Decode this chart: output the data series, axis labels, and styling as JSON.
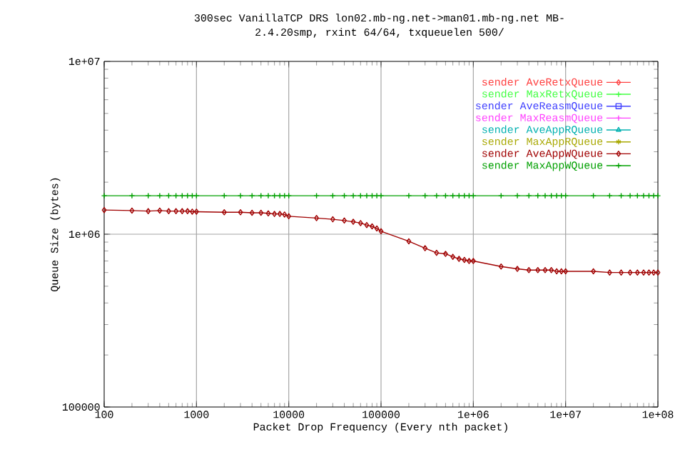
{
  "chart_data": {
    "type": "line",
    "title": "300sec VanillaTCP DRS lon02.mb-ng.net->man01.mb-ng.net MB-",
    "subtitle": "2.4.20smp, rxint 64/64, txqueuelen 500/",
    "xlabel": "Packet Drop Frequency (Every nth packet)",
    "ylabel": "Queue Size (bytes)",
    "x": [
      100,
      200,
      300,
      400,
      500,
      600,
      700,
      800,
      900,
      1000,
      2000,
      3000,
      4000,
      5000,
      6000,
      7000,
      8000,
      9000,
      10000,
      20000,
      30000,
      40000,
      50000,
      60000,
      70000,
      80000,
      90000,
      100000,
      200000,
      300000,
      400000,
      500000,
      600000,
      700000,
      800000,
      900000,
      1000000,
      2000000,
      3000000,
      4000000,
      5000000,
      6000000,
      7000000,
      8000000,
      9000000,
      10000000,
      20000000,
      30000000,
      40000000,
      50000000,
      60000000,
      70000000,
      80000000,
      90000000,
      100000000
    ],
    "xlim": [
      100,
      100000000
    ],
    "xticks": [
      100,
      1000,
      10000,
      100000,
      {
        "value": 1000000,
        "label": "1e+06"
      },
      {
        "value": 10000000,
        "label": "1e+07"
      },
      {
        "value": 100000000,
        "label": "1e+08"
      }
    ],
    "ylim": [
      100000,
      10000000
    ],
    "yticks": [
      100000,
      {
        "value": 1000000,
        "label": "1e+06"
      },
      {
        "value": 10000000,
        "label": "1e+07"
      }
    ],
    "log": "xy",
    "grid": true,
    "legend": "top right",
    "line_style": "solid",
    "series": [
      {
        "name": "sender AveRetxQueue",
        "color": "#ff4040",
        "marker": "diamond",
        "values": [
          null,
          null,
          null,
          null,
          null,
          null,
          null,
          null,
          null,
          null,
          null,
          null,
          null,
          null,
          null,
          null,
          null,
          null,
          null,
          null,
          null,
          null,
          null,
          null,
          null,
          null,
          null,
          null,
          null,
          null,
          null,
          null,
          null,
          null,
          null,
          null,
          null,
          null,
          null,
          null,
          null,
          null,
          null,
          null,
          null,
          null,
          null,
          null,
          null,
          null,
          null,
          null,
          null,
          null,
          null
        ]
      },
      {
        "name": "sender MaxRetxQueue",
        "color": "#40ff40",
        "marker": "cross",
        "values": [
          null,
          null,
          null,
          null,
          null,
          null,
          null,
          null,
          null,
          null,
          null,
          null,
          null,
          null,
          null,
          null,
          null,
          null,
          null,
          null,
          null,
          null,
          null,
          null,
          null,
          null,
          null,
          null,
          null,
          null,
          null,
          null,
          null,
          null,
          null,
          null,
          null,
          null,
          null,
          null,
          null,
          null,
          null,
          null,
          null,
          null,
          null,
          null,
          null,
          null,
          null,
          null,
          null,
          null,
          null
        ]
      },
      {
        "name": "sender AveReasmQueue",
        "color": "#4040ff",
        "marker": "square",
        "values": [
          null,
          null,
          null,
          null,
          null,
          null,
          null,
          null,
          null,
          null,
          null,
          null,
          null,
          null,
          null,
          null,
          null,
          null,
          null,
          null,
          null,
          null,
          null,
          null,
          null,
          null,
          null,
          null,
          null,
          null,
          null,
          null,
          null,
          null,
          null,
          null,
          null,
          null,
          null,
          null,
          null,
          null,
          null,
          null,
          null,
          null,
          null,
          null,
          null,
          null,
          null,
          null,
          null,
          null,
          null
        ]
      },
      {
        "name": "sender MaxReasmQueue",
        "color": "#ff40ff",
        "marker": "cross",
        "values": [
          null,
          null,
          null,
          null,
          null,
          null,
          null,
          null,
          null,
          null,
          null,
          null,
          null,
          null,
          null,
          null,
          null,
          null,
          null,
          null,
          null,
          null,
          null,
          null,
          null,
          null,
          null,
          null,
          null,
          null,
          null,
          null,
          null,
          null,
          null,
          null,
          null,
          null,
          null,
          null,
          null,
          null,
          null,
          null,
          null,
          null,
          null,
          null,
          null,
          null,
          null,
          null,
          null,
          null,
          null
        ]
      },
      {
        "name": "sender AveAppRQueue",
        "color": "#00b0b0",
        "marker": "triangle",
        "values": [
          null,
          null,
          null,
          null,
          null,
          null,
          null,
          null,
          null,
          null,
          null,
          null,
          null,
          null,
          null,
          null,
          null,
          null,
          null,
          null,
          null,
          null,
          null,
          null,
          null,
          null,
          null,
          null,
          null,
          null,
          null,
          null,
          null,
          null,
          null,
          null,
          null,
          null,
          null,
          null,
          null,
          null,
          null,
          null,
          null,
          null,
          null,
          null,
          null,
          null,
          null,
          null,
          null,
          null,
          null
        ]
      },
      {
        "name": "sender MaxAppRQueue",
        "color": "#a8a800",
        "marker": "star",
        "values": [
          null,
          null,
          null,
          null,
          null,
          null,
          null,
          null,
          null,
          null,
          null,
          null,
          null,
          null,
          null,
          null,
          null,
          null,
          null,
          null,
          null,
          null,
          null,
          null,
          null,
          null,
          null,
          null,
          null,
          null,
          null,
          null,
          null,
          null,
          null,
          null,
          null,
          null,
          null,
          null,
          null,
          null,
          null,
          null,
          null,
          null,
          null,
          null,
          null,
          null,
          null,
          null,
          null,
          null,
          null
        ]
      },
      {
        "name": "sender AveAppWQueue",
        "color": "#a00000",
        "marker": "diamond",
        "values": [
          1380000,
          1370000,
          1360000,
          1370000,
          1360000,
          1360000,
          1360000,
          1360000,
          1350000,
          1350000,
          1340000,
          1340000,
          1330000,
          1330000,
          1320000,
          1310000,
          1310000,
          1300000,
          1270000,
          1240000,
          1220000,
          1200000,
          1180000,
          1160000,
          1130000,
          1110000,
          1080000,
          1040000,
          910000,
          830000,
          780000,
          770000,
          740000,
          720000,
          710000,
          700000,
          700000,
          650000,
          630000,
          620000,
          620000,
          620000,
          620000,
          610000,
          610000,
          610000,
          610000,
          600000,
          600000,
          600000,
          600000,
          600000,
          600000,
          600000,
          600000
        ]
      },
      {
        "name": "sender MaxAppWQueue",
        "color": "#00a000",
        "marker": "cross",
        "values": [
          1670000,
          1670000,
          1670000,
          1670000,
          1670000,
          1670000,
          1670000,
          1670000,
          1670000,
          1670000,
          1670000,
          1670000,
          1670000,
          1670000,
          1670000,
          1670000,
          1670000,
          1670000,
          1670000,
          1670000,
          1670000,
          1670000,
          1670000,
          1670000,
          1670000,
          1670000,
          1670000,
          1670000,
          1670000,
          1670000,
          1670000,
          1670000,
          1670000,
          1670000,
          1670000,
          1670000,
          1670000,
          1670000,
          1670000,
          1670000,
          1670000,
          1670000,
          1670000,
          1670000,
          1670000,
          1670000,
          1670000,
          1670000,
          1670000,
          1670000,
          1670000,
          1670000,
          1670000,
          1670000,
          1670000
        ]
      }
    ]
  }
}
